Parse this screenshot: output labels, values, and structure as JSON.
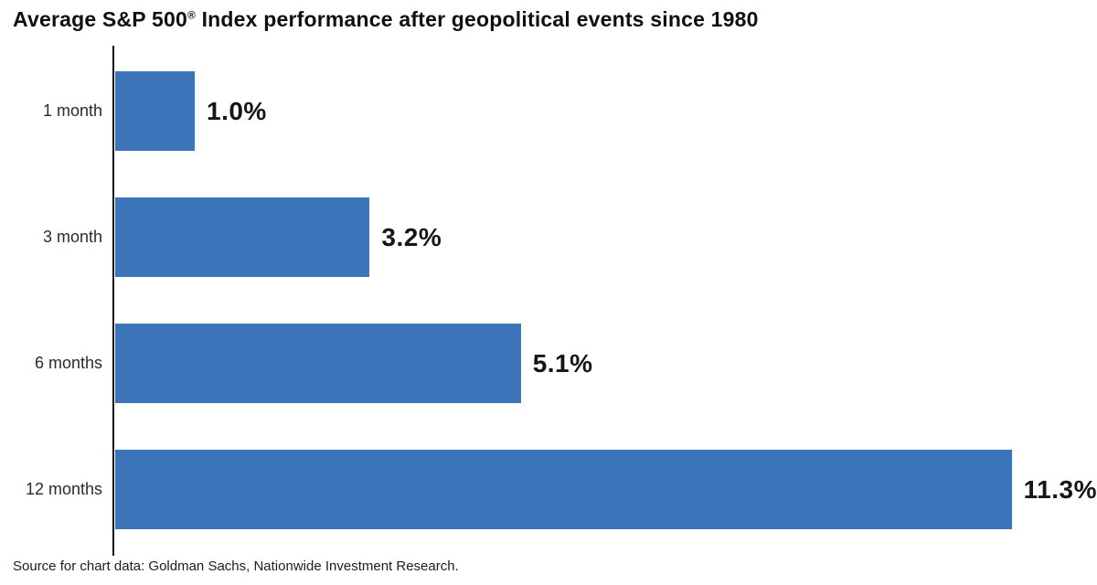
{
  "header": {
    "title_part1": "Average S&P 500",
    "title_reg": "®",
    "title_part2": " Index performance after geopolitical events since 1980"
  },
  "footer": {
    "source": "Source for chart data: Goldman Sachs, Nationwide Investment Research."
  },
  "colors": {
    "bar": "#3B74B8",
    "axis": "#111111",
    "text": "#1D1D1D"
  },
  "chart_data": {
    "type": "bar",
    "orientation": "horizontal",
    "title": "Average S&P 500® Index performance after geopolitical events since 1980",
    "categories": [
      "1 month",
      "3 month",
      "6 months",
      "12 months"
    ],
    "values": [
      1.0,
      3.2,
      5.1,
      11.3
    ],
    "value_labels": [
      "1.0%",
      "3.2%",
      "5.1%",
      "11.3%"
    ],
    "unit": "percent",
    "xlabel": "",
    "ylabel": "",
    "xlim": [
      0,
      12.3
    ],
    "grid": false,
    "legend": false,
    "source": "Source for chart data: Goldman Sachs, Nationwide Investment Research."
  }
}
